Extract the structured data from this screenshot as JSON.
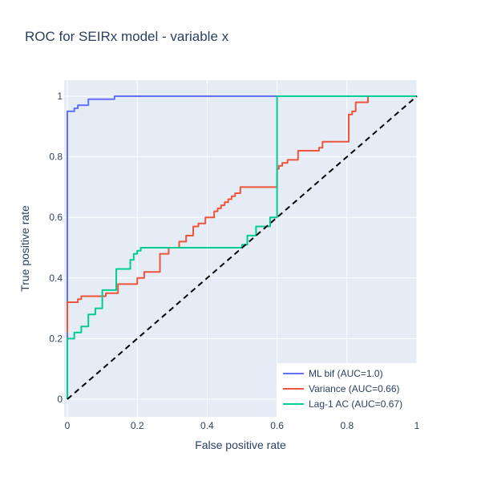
{
  "chart_data": {
    "type": "line",
    "title": "ROC for SEIRx model - variable x",
    "xlabel": "False positive rate",
    "ylabel": "True positive rate",
    "xlim": [
      0,
      1
    ],
    "ylim": [
      0,
      1
    ],
    "xticks": [
      0,
      0.2,
      0.4,
      0.6,
      0.8,
      1
    ],
    "xtick_labels": [
      "0",
      "0.2",
      "0.4",
      "0.6",
      "0.8",
      "1"
    ],
    "yticks": [
      0,
      0.2,
      0.4,
      0.6,
      0.8,
      1
    ],
    "ytick_labels": [
      "0",
      "0.2",
      "0.4",
      "0.6",
      "0.8",
      "1"
    ],
    "grid": true,
    "legend_position": "bottom-right",
    "colors": {
      "plot_bg": "#e5ecf6",
      "grid": "#ffffff",
      "text": "#2a3f5f"
    },
    "series": [
      {
        "name": "ML bif (AUC=1.0)",
        "color": "#636efa",
        "x": [
          0,
          0,
          0.02,
          0.02,
          0.03,
          0.03,
          0.06,
          0.06,
          0.135,
          0.135,
          1
        ],
        "y": [
          0,
          0.95,
          0.95,
          0.96,
          0.96,
          0.97,
          0.97,
          0.99,
          0.99,
          1,
          1
        ]
      },
      {
        "name": "Variance (AUC=0.66)",
        "color": "#ef553b",
        "x": [
          0,
          0,
          0.03,
          0.03,
          0.04,
          0.04,
          0.055,
          0.055,
          0.11,
          0.11,
          0.145,
          0.145,
          0.2,
          0.2,
          0.22,
          0.22,
          0.265,
          0.265,
          0.29,
          0.29,
          0.32,
          0.32,
          0.34,
          0.34,
          0.36,
          0.36,
          0.375,
          0.375,
          0.395,
          0.395,
          0.42,
          0.42,
          0.43,
          0.43,
          0.44,
          0.44,
          0.45,
          0.45,
          0.46,
          0.46,
          0.47,
          0.47,
          0.48,
          0.48,
          0.495,
          0.495,
          0.6,
          0.6,
          0.605,
          0.605,
          0.615,
          0.615,
          0.63,
          0.63,
          0.66,
          0.66,
          0.72,
          0.72,
          0.73,
          0.73,
          0.805,
          0.805,
          0.815,
          0.815,
          0.825,
          0.825,
          0.86,
          0.86,
          1
        ],
        "y": [
          0.22,
          0.32,
          0.32,
          0.33,
          0.33,
          0.34,
          0.34,
          0.34,
          0.34,
          0.35,
          0.35,
          0.38,
          0.38,
          0.4,
          0.4,
          0.42,
          0.42,
          0.48,
          0.48,
          0.5,
          0.5,
          0.52,
          0.52,
          0.54,
          0.54,
          0.57,
          0.57,
          0.58,
          0.58,
          0.6,
          0.6,
          0.62,
          0.62,
          0.63,
          0.63,
          0.64,
          0.64,
          0.65,
          0.65,
          0.66,
          0.66,
          0.67,
          0.67,
          0.68,
          0.68,
          0.7,
          0.7,
          0.76,
          0.76,
          0.77,
          0.77,
          0.78,
          0.78,
          0.79,
          0.79,
          0.82,
          0.82,
          0.83,
          0.83,
          0.85,
          0.85,
          0.94,
          0.94,
          0.95,
          0.95,
          0.98,
          0.98,
          1,
          1
        ]
      },
      {
        "name": "Lag-1 AC (AUC=0.67)",
        "color": "#00cc96",
        "x": [
          0,
          0,
          0.02,
          0.02,
          0.04,
          0.04,
          0.06,
          0.06,
          0.08,
          0.08,
          0.1,
          0.1,
          0.14,
          0.14,
          0.18,
          0.18,
          0.19,
          0.19,
          0.2,
          0.2,
          0.21,
          0.21,
          0.5,
          0.5,
          0.515,
          0.515,
          0.54,
          0.54,
          0.58,
          0.58,
          0.6,
          0.6,
          1
        ],
        "y": [
          0,
          0.2,
          0.2,
          0.22,
          0.22,
          0.24,
          0.24,
          0.28,
          0.28,
          0.3,
          0.3,
          0.36,
          0.36,
          0.43,
          0.43,
          0.46,
          0.46,
          0.48,
          0.48,
          0.49,
          0.49,
          0.5,
          0.5,
          0.51,
          0.51,
          0.54,
          0.54,
          0.57,
          0.57,
          0.6,
          0.6,
          1,
          1
        ]
      },
      {
        "name": "",
        "color": "#000000",
        "dash": "dashed",
        "x": [
          0,
          1
        ],
        "y": [
          0,
          1
        ]
      }
    ]
  }
}
